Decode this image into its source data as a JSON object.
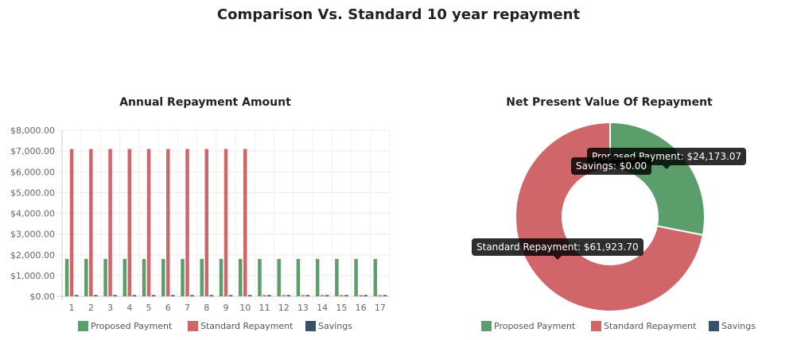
{
  "page": {
    "title": "Comparison Vs. Standard 10 year repayment"
  },
  "colors": {
    "proposed": "#5c9e6b",
    "standard": "#d0666a",
    "savings": "#35516b"
  },
  "legend": [
    "Proposed Payment",
    "Standard Repayment",
    "Savings"
  ],
  "tooltips": [
    "Proposed Payment: $24,173.07",
    "Savings: $0.00",
    "Standard Repayment: $61,923.70"
  ],
  "chart_data": [
    {
      "type": "bar",
      "title": "Annual Repayment Amount",
      "categories": [
        "1",
        "2",
        "3",
        "4",
        "5",
        "6",
        "7",
        "8",
        "9",
        "10",
        "11",
        "12",
        "13",
        "14",
        "15",
        "16",
        "17"
      ],
      "series": [
        {
          "name": "Proposed Payment",
          "values": [
            1800,
            1800,
            1800,
            1800,
            1800,
            1800,
            1800,
            1800,
            1800,
            1800,
            1800,
            1800,
            1800,
            1800,
            1800,
            1800,
            1800
          ]
        },
        {
          "name": "Standard Repayment",
          "values": [
            7100,
            7100,
            7100,
            7100,
            7100,
            7100,
            7100,
            7100,
            7100,
            7100,
            0,
            0,
            0,
            0,
            0,
            0,
            0
          ]
        },
        {
          "name": "Savings",
          "values": [
            0,
            0,
            0,
            0,
            0,
            0,
            0,
            0,
            0,
            0,
            0,
            0,
            0,
            0,
            0,
            0,
            0
          ]
        }
      ],
      "ylim": [
        0,
        8000
      ],
      "yticks": [
        "$0.00",
        "$1,000.00",
        "$2,000.00",
        "$3,000.00",
        "$4,000.00",
        "$5,000.00",
        "$6,000.00",
        "$7,000.00",
        "$8,000.00"
      ],
      "grid": true,
      "legend_position": "bottom"
    },
    {
      "type": "pie",
      "title": "Net Present Value Of Repayment",
      "labels": [
        "Proposed Payment",
        "Standard Repayment",
        "Savings"
      ],
      "values": [
        24173.07,
        61923.7,
        0.0
      ],
      "legend_position": "bottom"
    }
  ]
}
